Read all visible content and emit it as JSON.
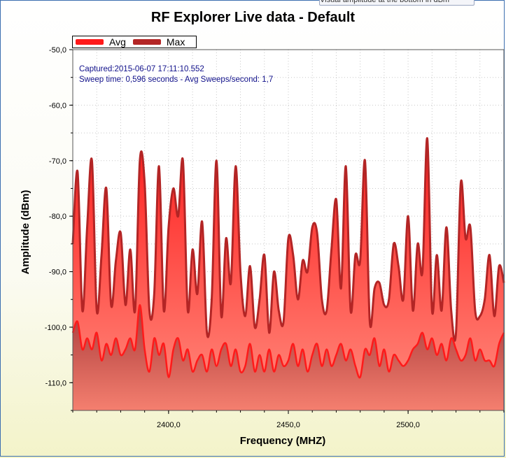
{
  "window": {
    "tooltip_text": "Visual amplitude at the bottom in dBm"
  },
  "chart_data": {
    "type": "area",
    "title": "RF Explorer Live data - Default",
    "xlabel": "Frequency (MHZ)",
    "ylabel": "Amplitude (dBm)",
    "xlim": [
      2360,
      2540
    ],
    "ylim": [
      -115,
      -50
    ],
    "x_ticks": [
      2400,
      2450,
      2500
    ],
    "x_tick_labels": [
      "2400,0",
      "2450,0",
      "2500,0"
    ],
    "y_ticks": [
      -50,
      -60,
      -70,
      -80,
      -90,
      -100,
      -110
    ],
    "y_tick_labels": [
      "-50,0",
      "-60,0",
      "-70,0",
      "-80,0",
      "-90,0",
      "-100,0",
      "-110,0"
    ],
    "grid": true,
    "legend_position": "top-left",
    "annotations": [
      "Captured:2015-06-07 17:11:10.552",
      "Sweep time: 0,596 seconds - Avg Sweeps/second: 1,7"
    ],
    "x": [
      2360,
      2362,
      2364,
      2366,
      2368,
      2370,
      2372,
      2374,
      2376,
      2378,
      2380,
      2382,
      2384,
      2386,
      2388,
      2390,
      2392,
      2394,
      2396,
      2398,
      2400,
      2402,
      2404,
      2406,
      2408,
      2410,
      2412,
      2414,
      2416,
      2418,
      2420,
      2422,
      2424,
      2426,
      2428,
      2430,
      2432,
      2434,
      2436,
      2438,
      2440,
      2442,
      2444,
      2446,
      2448,
      2450,
      2452,
      2454,
      2456,
      2458,
      2460,
      2462,
      2464,
      2466,
      2468,
      2470,
      2472,
      2474,
      2476,
      2478,
      2480,
      2482,
      2484,
      2486,
      2488,
      2490,
      2492,
      2494,
      2496,
      2498,
      2500,
      2502,
      2504,
      2506,
      2508,
      2510,
      2512,
      2514,
      2516,
      2518,
      2520,
      2522,
      2524,
      2526,
      2528,
      2530,
      2532,
      2534,
      2536,
      2538,
      2540
    ],
    "series": [
      {
        "name": "Avg",
        "color": "#ff1a1a",
        "values": [
          -101,
          -99,
          -104,
          -102,
          -104,
          -101,
          -106,
          -103,
          -105,
          -102,
          -105,
          -104,
          -102,
          -104,
          -96,
          -104,
          -108,
          -102,
          -105,
          -103,
          -109,
          -104,
          -102,
          -106,
          -104,
          -108,
          -106,
          -105,
          -108,
          -104,
          -107,
          -104,
          -103,
          -107,
          -104,
          -108,
          -107,
          -103,
          -108,
          -105,
          -108,
          -104,
          -108,
          -105,
          -107,
          -106,
          -103,
          -107,
          -104,
          -108,
          -105,
          -103,
          -107,
          -104,
          -107,
          -105,
          -103,
          -106,
          -104,
          -107,
          -109,
          -104,
          -105,
          -102,
          -107,
          -104,
          -108,
          -105,
          -106,
          -107,
          -106,
          -104,
          -103,
          -101,
          -104,
          -102,
          -105,
          -103,
          -106,
          -102,
          -104,
          -106,
          -105,
          -102,
          -106,
          -104,
          -106,
          -106,
          -107,
          -103,
          -101
        ]
      },
      {
        "name": "Max",
        "color": "#b32525",
        "values": [
          -85,
          -72,
          -97,
          -82,
          -70,
          -97,
          -87,
          -75,
          -96,
          -88,
          -83,
          -96,
          -86,
          -97,
          -70,
          -74,
          -97,
          -94,
          -71,
          -97,
          -82,
          -75,
          -80,
          -70,
          -97,
          -86,
          -94,
          -81,
          -101,
          -95,
          -70,
          -98,
          -84,
          -92,
          -71,
          -90,
          -98,
          -89,
          -100,
          -95,
          -87,
          -101,
          -90,
          -97,
          -99,
          -84,
          -87,
          -95,
          -88,
          -90,
          -82,
          -83,
          -95,
          -97,
          -86,
          -77,
          -93,
          -71,
          -97,
          -87,
          -88,
          -70,
          -99,
          -93,
          -92,
          -96,
          -95,
          -85,
          -89,
          -95,
          -80,
          -97,
          -85,
          -90,
          -66,
          -97,
          -87,
          -97,
          -82,
          -97,
          -101,
          -74,
          -84,
          -82,
          -97,
          -98,
          -95,
          -87,
          -98,
          -89,
          -92
        ]
      }
    ]
  }
}
